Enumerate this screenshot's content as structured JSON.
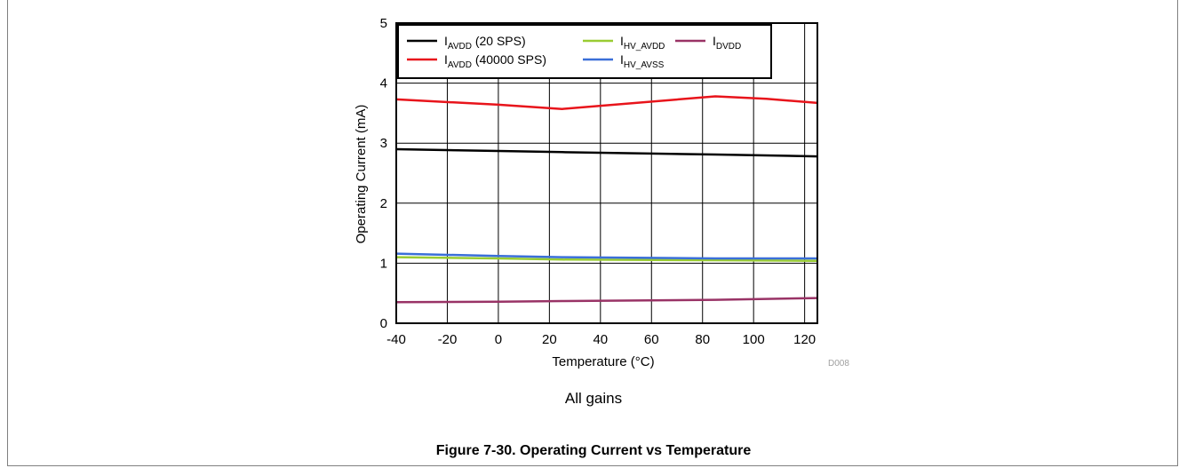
{
  "chart_data": {
    "type": "line",
    "xlabel": "Temperature (°C)",
    "ylabel": "Operating Current (mA)",
    "xlim": [
      -40,
      125
    ],
    "ylim": [
      0,
      5
    ],
    "x_ticks": [
      -40,
      -20,
      0,
      20,
      40,
      60,
      80,
      100,
      120
    ],
    "y_ticks": [
      0,
      1,
      2,
      3,
      4,
      5
    ],
    "grid": true,
    "legend_placement": "top",
    "series": [
      {
        "name": "AVDD (20 SPS)",
        "label_main": "I",
        "label_sub": "AVDD",
        "label_suffix": " (20 SPS)",
        "color": "#000000",
        "points": [
          [
            -40,
            2.9
          ],
          [
            0,
            2.87
          ],
          [
            25,
            2.85
          ],
          [
            85,
            2.81
          ],
          [
            125,
            2.78
          ]
        ]
      },
      {
        "name": "AVDD (40000 SPS)",
        "label_main": "I",
        "label_sub": "AVDD",
        "label_suffix": " (40000 SPS)",
        "color": "#e8141b",
        "points": [
          [
            -40,
            3.73
          ],
          [
            0,
            3.64
          ],
          [
            25,
            3.57
          ],
          [
            85,
            3.78
          ],
          [
            105,
            3.74
          ],
          [
            125,
            3.67
          ]
        ]
      },
      {
        "name": "HV_AVDD",
        "label_main": "I",
        "label_sub": "HV_AVDD",
        "label_suffix": "",
        "color": "#99cc33",
        "points": [
          [
            -40,
            1.1
          ],
          [
            0,
            1.08
          ],
          [
            25,
            1.06
          ],
          [
            85,
            1.05
          ],
          [
            125,
            1.04
          ]
        ]
      },
      {
        "name": "HV_AVSS",
        "label_main": "I",
        "label_sub": "HV_AVSS",
        "label_suffix": "",
        "color": "#3a6fd8",
        "points": [
          [
            -40,
            1.16
          ],
          [
            0,
            1.12
          ],
          [
            25,
            1.1
          ],
          [
            85,
            1.08
          ],
          [
            125,
            1.08
          ]
        ]
      },
      {
        "name": "DVDD",
        "label_main": "I",
        "label_sub": "DVDD",
        "label_suffix": "",
        "color": "#993366",
        "points": [
          [
            -40,
            0.35
          ],
          [
            0,
            0.36
          ],
          [
            25,
            0.37
          ],
          [
            85,
            0.39
          ],
          [
            125,
            0.42
          ]
        ]
      }
    ],
    "id_label": "D008"
  },
  "note": "All gains",
  "figure_title": "Figure 7-30. Operating Current vs Temperature"
}
